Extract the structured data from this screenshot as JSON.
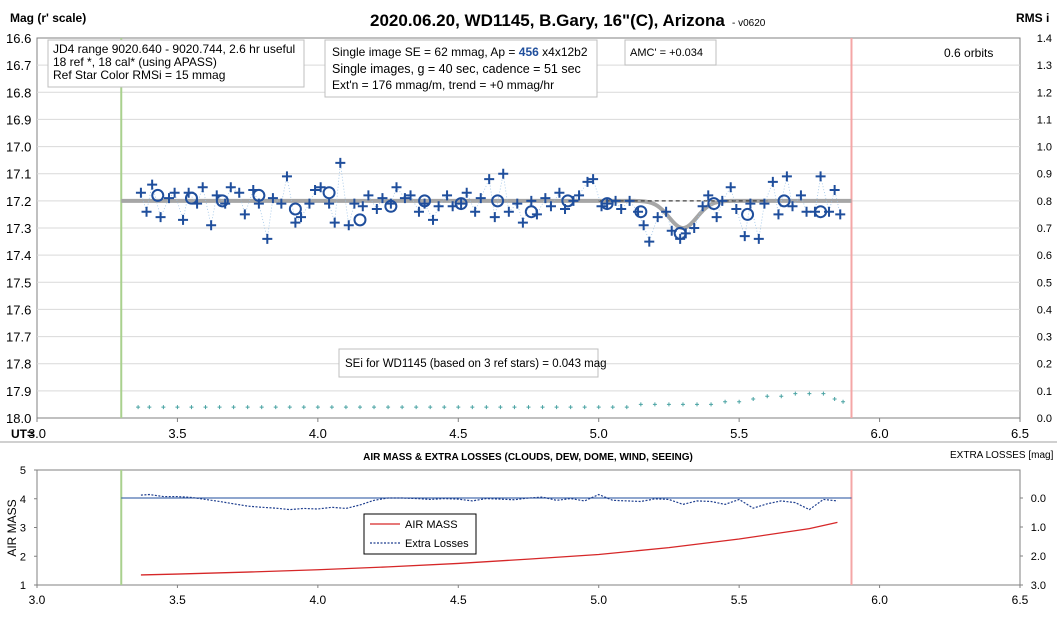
{
  "chart_data": [
    {
      "type": "scatter",
      "title": "2020.06.20, WD1145, B.Gary, 16\"(C), Arizona",
      "version_tag": "- v0620",
      "ylabel_left": "Mag (r' scale)",
      "ylabel_right": "RMS i",
      "xlabel": "UT=",
      "xlim": [
        3.0,
        6.5
      ],
      "ylim_left": [
        16.6,
        18.0
      ],
      "ylim_right": [
        0.0,
        1.4
      ],
      "left_axis_inverted": true,
      "x_ticks": [
        "3.0",
        "3.5",
        "4.0",
        "4.5",
        "5.0",
        "5.5",
        "6.0",
        "6.5"
      ],
      "y_ticks_left": [
        "16.6",
        "16.7",
        "16.8",
        "16.9",
        "17.0",
        "17.1",
        "17.2",
        "17.3",
        "17.4",
        "17.5",
        "17.6",
        "17.7",
        "17.8",
        "17.9",
        "18.0"
      ],
      "y_ticks_right": [
        "1.4",
        "1.3",
        "1.2",
        "1.1",
        "1.0",
        "0.9",
        "0.8",
        "0.7",
        "0.6",
        "0.5",
        "0.4",
        "0.3",
        "0.2",
        "0.1",
        "0.0"
      ],
      "vertical_lines": [
        {
          "x": 3.3,
          "color": "#a9d18e"
        },
        {
          "x": 5.9,
          "color": "#f4a6a6"
        }
      ],
      "colors": {
        "points": "#1f4e9c",
        "model": "#a6a6a6",
        "rms": "#4aa3a3",
        "annotation_border": "#bfbfbf"
      },
      "annotations": {
        "box1": [
          "JD4 range 9020.640 - 9020.744, 2.6 hr useful",
          " 18 ref *, 18 cal* (using APASS)",
          "Ref Star Color RMSi = 15 mmag"
        ],
        "box2_line1_prefix": "Single image SE = 62 mmag, Ap = ",
        "box2_ap": "456",
        "box2_line1_suffix": " x4x12b2",
        "box2_line2": "Single images, g = 40 sec, cadence = 51 sec",
        "box2_line3": "Ext'n = 176 mmag/m, trend = +0 mmag/hr",
        "box3": "AMC' = +0.034",
        "orbits": "0.6 orbits",
        "sei": "SEi for WD1145 (based on 3 ref stars) = 0.043 mag"
      },
      "model_baseline": 17.2,
      "model_dip": {
        "center": 5.3,
        "depth": 0.1
      },
      "dashed_baseline": {
        "x_from": 5.0,
        "x_to": 5.6,
        "y": 17.2
      },
      "series": [
        {
          "marker": "plus",
          "points": [
            [
              3.37,
              17.17
            ],
            [
              3.39,
              17.24
            ],
            [
              3.41,
              17.14
            ],
            [
              3.44,
              17.26
            ],
            [
              3.47,
              17.19
            ],
            [
              3.49,
              17.17
            ],
            [
              3.52,
              17.27
            ],
            [
              3.54,
              17.17
            ],
            [
              3.57,
              17.21
            ],
            [
              3.59,
              17.15
            ],
            [
              3.62,
              17.29
            ],
            [
              3.64,
              17.18
            ],
            [
              3.67,
              17.21
            ],
            [
              3.69,
              17.15
            ],
            [
              3.72,
              17.17
            ],
            [
              3.74,
              17.25
            ],
            [
              3.77,
              17.16
            ],
            [
              3.79,
              17.21
            ],
            [
              3.82,
              17.34
            ],
            [
              3.84,
              17.19
            ],
            [
              3.87,
              17.21
            ],
            [
              3.89,
              17.11
            ],
            [
              3.92,
              17.28
            ],
            [
              3.94,
              17.26
            ],
            [
              3.97,
              17.21
            ],
            [
              3.99,
              17.16
            ],
            [
              4.01,
              17.15
            ],
            [
              4.04,
              17.21
            ],
            [
              4.06,
              17.28
            ],
            [
              4.08,
              17.06
            ],
            [
              4.11,
              17.29
            ],
            [
              4.13,
              17.21
            ],
            [
              4.16,
              17.22
            ],
            [
              4.18,
              17.18
            ],
            [
              4.21,
              17.23
            ],
            [
              4.23,
              17.19
            ],
            [
              4.26,
              17.21
            ],
            [
              4.28,
              17.15
            ],
            [
              4.31,
              17.19
            ],
            [
              4.33,
              17.18
            ],
            [
              4.36,
              17.24
            ],
            [
              4.38,
              17.21
            ],
            [
              4.41,
              17.27
            ],
            [
              4.43,
              17.22
            ],
            [
              4.46,
              17.18
            ],
            [
              4.48,
              17.22
            ],
            [
              4.51,
              17.21
            ],
            [
              4.53,
              17.17
            ],
            [
              4.56,
              17.24
            ],
            [
              4.58,
              17.19
            ],
            [
              4.61,
              17.12
            ],
            [
              4.63,
              17.26
            ],
            [
              4.66,
              17.1
            ],
            [
              4.68,
              17.24
            ],
            [
              4.71,
              17.21
            ],
            [
              4.73,
              17.28
            ],
            [
              4.76,
              17.2
            ],
            [
              4.78,
              17.25
            ],
            [
              4.81,
              17.19
            ],
            [
              4.83,
              17.22
            ],
            [
              4.86,
              17.17
            ],
            [
              4.88,
              17.23
            ],
            [
              4.91,
              17.2
            ],
            [
              4.93,
              17.18
            ],
            [
              4.96,
              17.13
            ],
            [
              4.98,
              17.12
            ],
            [
              5.01,
              17.22
            ],
            [
              5.03,
              17.21
            ],
            [
              5.06,
              17.2
            ],
            [
              5.08,
              17.23
            ],
            [
              5.11,
              17.2
            ],
            [
              5.14,
              17.24
            ],
            [
              5.16,
              17.29
            ],
            [
              5.18,
              17.35
            ],
            [
              5.21,
              17.26
            ],
            [
              5.24,
              17.24
            ],
            [
              5.26,
              17.31
            ],
            [
              5.29,
              17.34
            ],
            [
              5.31,
              17.32
            ],
            [
              5.34,
              17.3
            ],
            [
              5.37,
              17.22
            ],
            [
              5.39,
              17.18
            ],
            [
              5.42,
              17.26
            ],
            [
              5.44,
              17.2
            ],
            [
              5.47,
              17.15
            ],
            [
              5.49,
              17.23
            ],
            [
              5.52,
              17.33
            ],
            [
              5.54,
              17.21
            ],
            [
              5.57,
              17.34
            ],
            [
              5.59,
              17.21
            ],
            [
              5.62,
              17.13
            ],
            [
              5.64,
              17.25
            ],
            [
              5.67,
              17.11
            ],
            [
              5.69,
              17.22
            ],
            [
              5.72,
              17.18
            ],
            [
              5.74,
              17.24
            ],
            [
              5.77,
              17.24
            ],
            [
              5.79,
              17.11
            ],
            [
              5.82,
              17.24
            ],
            [
              5.84,
              17.16
            ],
            [
              5.86,
              17.25
            ]
          ]
        },
        {
          "marker": "circle",
          "points": [
            [
              3.43,
              17.18
            ],
            [
              3.55,
              17.19
            ],
            [
              3.66,
              17.2
            ],
            [
              3.79,
              17.18
            ],
            [
              3.92,
              17.23
            ],
            [
              4.04,
              17.17
            ],
            [
              4.15,
              17.27
            ],
            [
              4.26,
              17.22
            ],
            [
              4.38,
              17.2
            ],
            [
              4.51,
              17.21
            ],
            [
              4.64,
              17.2
            ],
            [
              4.76,
              17.24
            ],
            [
              4.89,
              17.2
            ],
            [
              5.03,
              17.21
            ],
            [
              5.15,
              17.24
            ],
            [
              5.29,
              17.32
            ],
            [
              5.41,
              17.21
            ],
            [
              5.53,
              17.25
            ],
            [
              5.66,
              17.2
            ],
            [
              5.79,
              17.24
            ]
          ]
        },
        {
          "marker": "plus-small",
          "axis": "right",
          "points": [
            [
              3.36,
              0.04
            ],
            [
              3.4,
              0.04
            ],
            [
              3.45,
              0.04
            ],
            [
              3.5,
              0.04
            ],
            [
              3.55,
              0.04
            ],
            [
              3.6,
              0.04
            ],
            [
              3.65,
              0.04
            ],
            [
              3.7,
              0.04
            ],
            [
              3.75,
              0.04
            ],
            [
              3.8,
              0.04
            ],
            [
              3.85,
              0.04
            ],
            [
              3.9,
              0.04
            ],
            [
              3.95,
              0.04
            ],
            [
              4.0,
              0.04
            ],
            [
              4.05,
              0.04
            ],
            [
              4.1,
              0.04
            ],
            [
              4.15,
              0.04
            ],
            [
              4.2,
              0.04
            ],
            [
              4.25,
              0.04
            ],
            [
              4.3,
              0.04
            ],
            [
              4.35,
              0.04
            ],
            [
              4.4,
              0.04
            ],
            [
              4.45,
              0.04
            ],
            [
              4.5,
              0.04
            ],
            [
              4.55,
              0.04
            ],
            [
              4.6,
              0.04
            ],
            [
              4.65,
              0.04
            ],
            [
              4.7,
              0.04
            ],
            [
              4.75,
              0.04
            ],
            [
              4.8,
              0.04
            ],
            [
              4.85,
              0.04
            ],
            [
              4.9,
              0.04
            ],
            [
              4.95,
              0.04
            ],
            [
              5.0,
              0.04
            ],
            [
              5.05,
              0.04
            ],
            [
              5.1,
              0.04
            ],
            [
              5.15,
              0.05
            ],
            [
              5.2,
              0.05
            ],
            [
              5.25,
              0.05
            ],
            [
              5.3,
              0.05
            ],
            [
              5.35,
              0.05
            ],
            [
              5.4,
              0.05
            ],
            [
              5.45,
              0.06
            ],
            [
              5.5,
              0.06
            ],
            [
              5.55,
              0.07
            ],
            [
              5.6,
              0.08
            ],
            [
              5.65,
              0.08
            ],
            [
              5.7,
              0.09
            ],
            [
              5.75,
              0.09
            ],
            [
              5.8,
              0.09
            ],
            [
              5.84,
              0.07
            ],
            [
              5.87,
              0.06
            ]
          ]
        }
      ]
    },
    {
      "type": "line",
      "title": "AIR MASS & EXTRA LOSSES (CLOUDS, DEW, DOME, WIND, SEEING)",
      "ylabel_left": "AIR MASS",
      "ylabel_right": "EXTRA LOSSES [mag]",
      "xlim": [
        3.0,
        6.5
      ],
      "ylim_left": [
        1,
        5
      ],
      "ylim_right": [
        0.0,
        3.0
      ],
      "right_axis_inverted": true,
      "x_ticks": [
        "3.0",
        "3.5",
        "4.0",
        "4.5",
        "5.0",
        "5.5",
        "6.0",
        "6.5"
      ],
      "y_ticks_left": [
        "5",
        "4",
        "3",
        "2",
        "1"
      ],
      "y_ticks_right": [
        "0.0",
        "1.0",
        "2.0",
        "3.0"
      ],
      "vertical_lines": [
        {
          "x": 3.3,
          "color": "#a9d18e"
        },
        {
          "x": 5.9,
          "color": "#f4a6a6"
        }
      ],
      "reference_line": {
        "axis": "right",
        "y": 0.0,
        "x_from": 3.3,
        "x_to": 5.9,
        "color": "#1f4e9c"
      },
      "legend": {
        "position": "bottom-center",
        "entries": [
          "AIR MASS",
          "Extra Losses"
        ]
      },
      "series": [
        {
          "name": "AIR MASS",
          "color": "#d62728",
          "axis": "left",
          "x": [
            3.37,
            3.5,
            3.75,
            4.0,
            4.25,
            4.5,
            4.75,
            5.0,
            5.25,
            5.5,
            5.75,
            5.85
          ],
          "values": [
            1.35,
            1.38,
            1.45,
            1.53,
            1.63,
            1.75,
            1.9,
            2.06,
            2.3,
            2.6,
            2.96,
            3.18
          ]
        },
        {
          "name": "Extra Losses",
          "color": "#1f3f8f",
          "axis": "right",
          "x": [
            3.37,
            3.4,
            3.45,
            3.5,
            3.55,
            3.6,
            3.65,
            3.7,
            3.75,
            3.8,
            3.85,
            3.9,
            3.95,
            4.0,
            4.05,
            4.1,
            4.15,
            4.2,
            4.25,
            4.3,
            4.35,
            4.4,
            4.45,
            4.5,
            4.55,
            4.6,
            4.65,
            4.7,
            4.75,
            4.8,
            4.85,
            4.9,
            4.95,
            5.0,
            5.05,
            5.1,
            5.15,
            5.2,
            5.25,
            5.3,
            5.35,
            5.4,
            5.45,
            5.5,
            5.55,
            5.6,
            5.65,
            5.7,
            5.75,
            5.8,
            5.85
          ],
          "values": [
            -0.1,
            -0.12,
            -0.05,
            -0.05,
            -0.02,
            0.05,
            0.12,
            0.2,
            0.28,
            0.32,
            0.35,
            0.4,
            0.36,
            0.38,
            0.32,
            0.36,
            0.24,
            0.08,
            0.0,
            0.0,
            0.02,
            0.05,
            0.02,
            0.04,
            0.1,
            0.02,
            0.04,
            0.06,
            0.0,
            -0.03,
            0.08,
            0.02,
            0.1,
            -0.12,
            0.08,
            0.1,
            0.12,
            0.03,
            0.05,
            0.22,
            0.1,
            0.12,
            0.22,
            0.05,
            0.35,
            0.2,
            0.1,
            0.16,
            0.4,
            0.05,
            0.1
          ]
        }
      ]
    }
  ]
}
